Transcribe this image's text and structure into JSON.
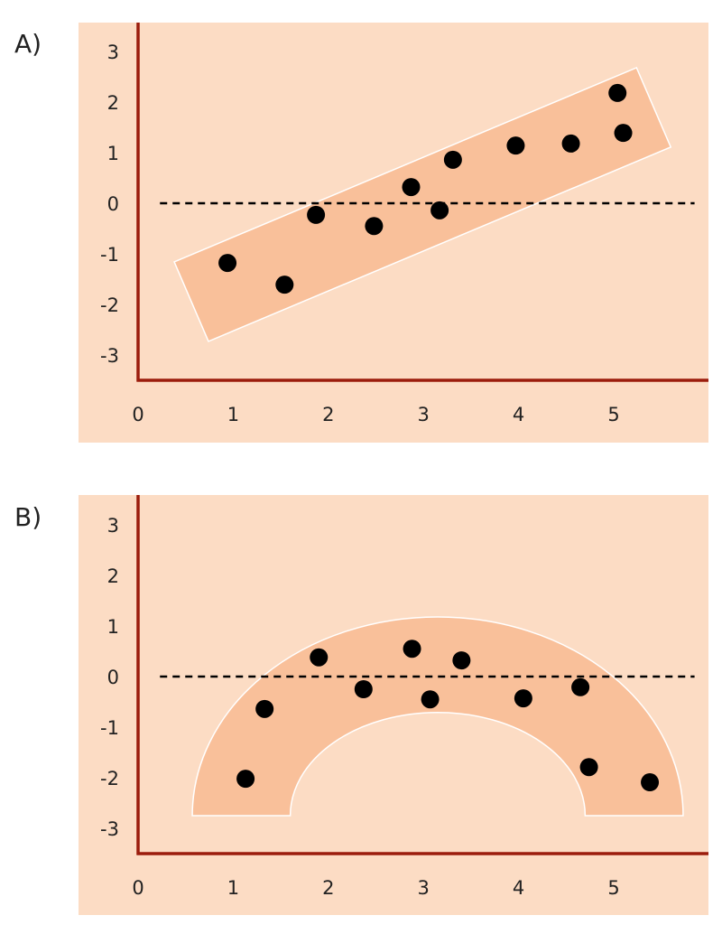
{
  "colors": {
    "background": "#fcdcc4",
    "band": "#f9c09a",
    "band_edge": "#ffffff",
    "axis": "#9b1c0c",
    "point": "#000000",
    "zero_line": "#000000"
  },
  "chart_data": [
    {
      "panel_label": "A)",
      "type": "scatter",
      "xticks": [
        "0",
        "1",
        "2",
        "3",
        "4",
        "5"
      ],
      "yticks": [
        "3",
        "2",
        "1",
        "0",
        "-1",
        "-2",
        "-3"
      ],
      "xlim": [
        0,
        6.1
      ],
      "ylim": [
        -3.5,
        3.6
      ],
      "reference_line": {
        "y": 0,
        "style": "dashed"
      },
      "points": [
        {
          "x": 0.94,
          "y": -1.18
        },
        {
          "x": 1.54,
          "y": -1.61
        },
        {
          "x": 1.87,
          "y": -0.23
        },
        {
          "x": 2.48,
          "y": -0.45
        },
        {
          "x": 2.87,
          "y": 0.32
        },
        {
          "x": 3.17,
          "y": -0.14
        },
        {
          "x": 3.31,
          "y": 0.86
        },
        {
          "x": 3.97,
          "y": 1.14
        },
        {
          "x": 4.55,
          "y": 1.18
        },
        {
          "x": 5.04,
          "y": 2.18
        },
        {
          "x": 5.1,
          "y": 1.39
        }
      ],
      "band": {
        "shape": "linear",
        "polygon": [
          [
            0.38,
            -1.16
          ],
          [
            5.24,
            2.68
          ],
          [
            5.6,
            1.11
          ],
          [
            0.74,
            -2.73
          ]
        ]
      }
    },
    {
      "panel_label": "B)",
      "type": "scatter",
      "xticks": [
        "0",
        "1",
        "2",
        "3",
        "4",
        "5"
      ],
      "yticks": [
        "3",
        "2",
        "1",
        "0",
        "-1",
        "-2",
        "-3"
      ],
      "xlim": [
        0,
        6.1
      ],
      "ylim": [
        -3.5,
        3.6
      ],
      "reference_line": {
        "y": 0,
        "style": "dashed"
      },
      "points": [
        {
          "x": 1.13,
          "y": -2.02
        },
        {
          "x": 1.33,
          "y": -0.64
        },
        {
          "x": 1.9,
          "y": 0.38
        },
        {
          "x": 2.37,
          "y": -0.25
        },
        {
          "x": 2.88,
          "y": 0.55
        },
        {
          "x": 3.07,
          "y": -0.45
        },
        {
          "x": 3.4,
          "y": 0.32
        },
        {
          "x": 4.05,
          "y": -0.43
        },
        {
          "x": 4.65,
          "y": -0.21
        },
        {
          "x": 4.74,
          "y": -1.79
        },
        {
          "x": 5.38,
          "y": -2.09
        }
      ],
      "band": {
        "shape": "arch",
        "center": [
          3.15,
          -2.75
        ],
        "outer_radius": [
          2.58,
          3.93
        ],
        "inner_radius": [
          1.55,
          2.04
        ]
      }
    }
  ]
}
